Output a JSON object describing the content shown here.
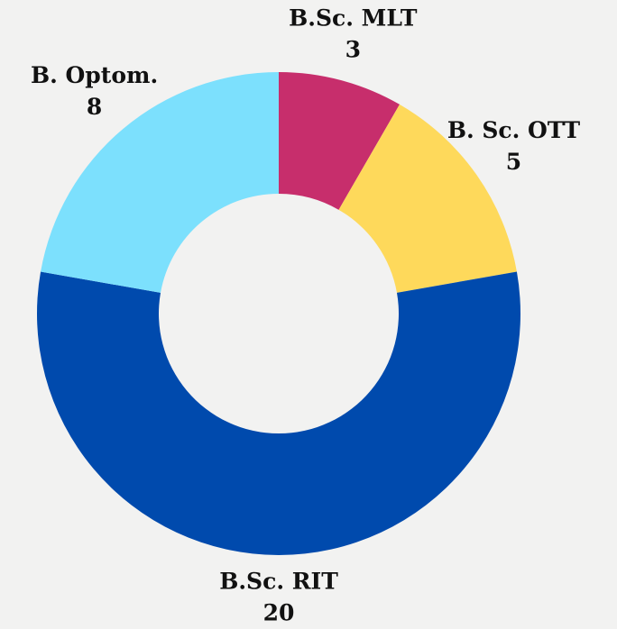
{
  "chart_data": {
    "type": "donut",
    "categories": [
      "B.Sc. MLT",
      "B. Sc. OTT",
      "B.Sc. RIT",
      "B. Optom."
    ],
    "values": [
      3,
      5,
      20,
      8
    ],
    "colors": [
      "#c72e6c",
      "#fed95b",
      "#004aad",
      "#7ce0fd"
    ]
  }
}
